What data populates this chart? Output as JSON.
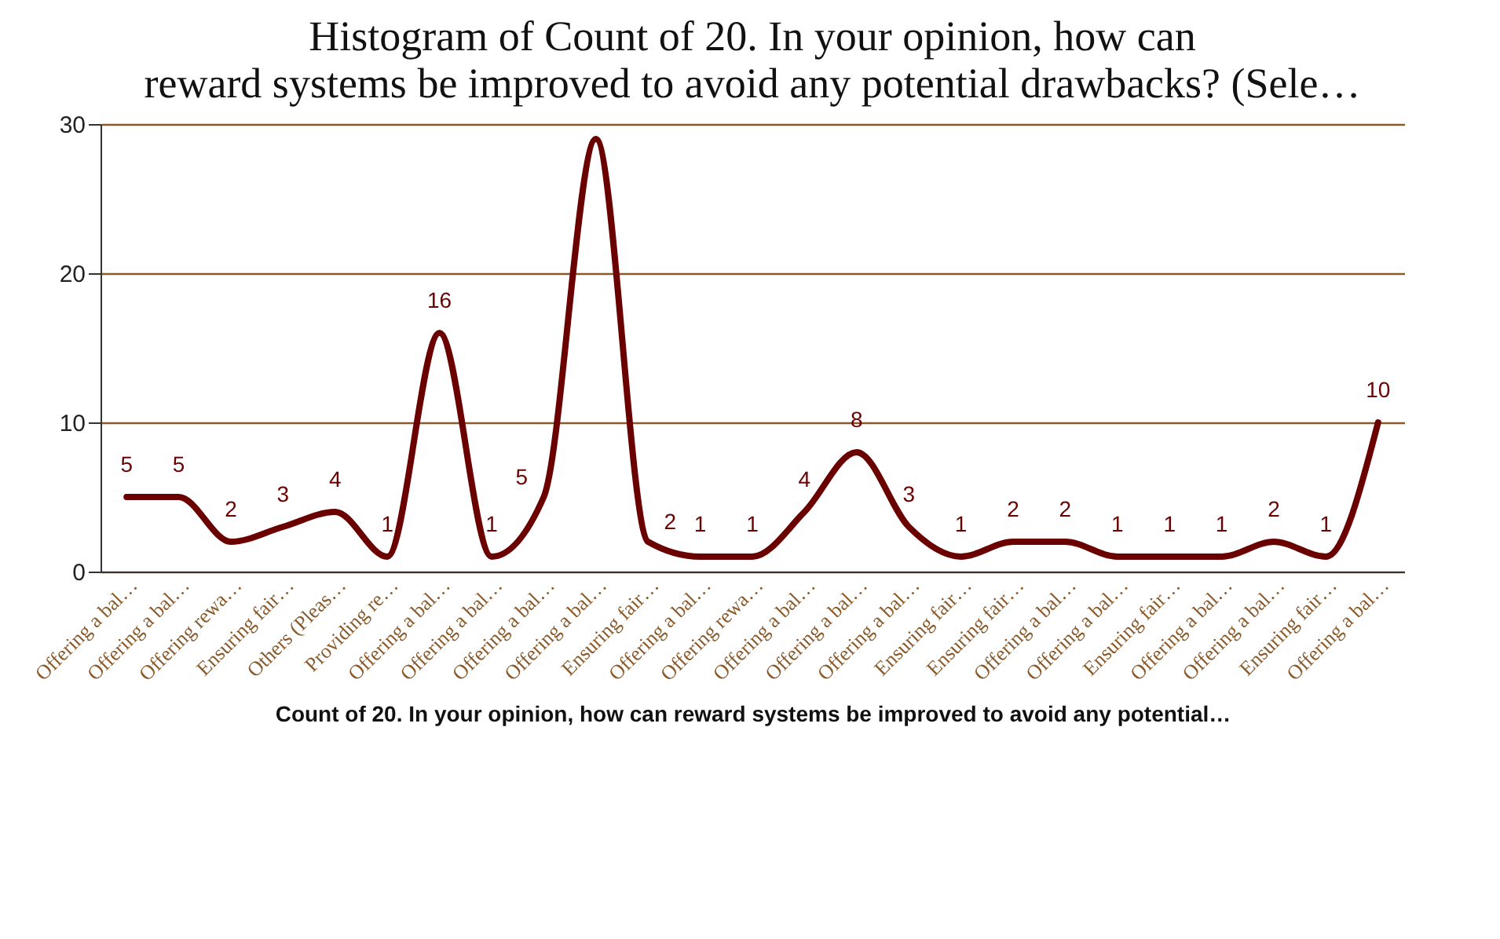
{
  "chart_data": {
    "type": "line",
    "title": "Histogram of Count of 20. In your opinion, how can reward systems be improved to avoid any potential drawbacks? (Sele…",
    "xlabel": "Count of 20. In your opinion, how can reward systems be improved to avoid any potential…",
    "categories": [
      "Offering a bal…",
      "Offering a bal…",
      "Offering rewa…",
      "Ensuring fair…",
      "Others (Pleas…",
      "Providing re…",
      "Offering a bal…",
      "Offering a bal…",
      "Offering a bal…",
      "Offering a bal…",
      "Ensuring fair…",
      "Offering a bal…",
      "Offering rewa…",
      "Offering a bal…",
      "Offering a bal…",
      "Offering a bal…",
      "Ensuring fair…",
      "Ensuring fair…",
      "Offering a bal…",
      "Offering a bal…",
      "Ensuring fair…",
      "Offering a bal…",
      "Offering a bal…",
      "Ensuring fair…",
      "Offering a bal…"
    ],
    "series": [
      {
        "color": "#6b0000",
        "values": [
          5,
          5,
          2,
          3,
          4,
          1,
          16,
          1,
          5,
          29,
          2,
          1,
          1,
          4,
          8,
          3,
          1,
          2,
          2,
          1,
          1,
          1,
          2,
          1,
          10
        ],
        "value_labels": [
          "5",
          "5",
          "2",
          "3",
          "4",
          "1",
          "16",
          "1",
          "5",
          null,
          "2",
          "1",
          "1",
          "4",
          "8",
          "3",
          "1",
          "2",
          "2",
          "1",
          "1",
          "1",
          "2",
          "1",
          "10"
        ]
      }
    ],
    "ylim": [
      0,
      30
    ],
    "yticks": [
      0,
      10,
      20,
      30
    ],
    "grid": "y",
    "marker": "none",
    "line_style": "solid"
  }
}
